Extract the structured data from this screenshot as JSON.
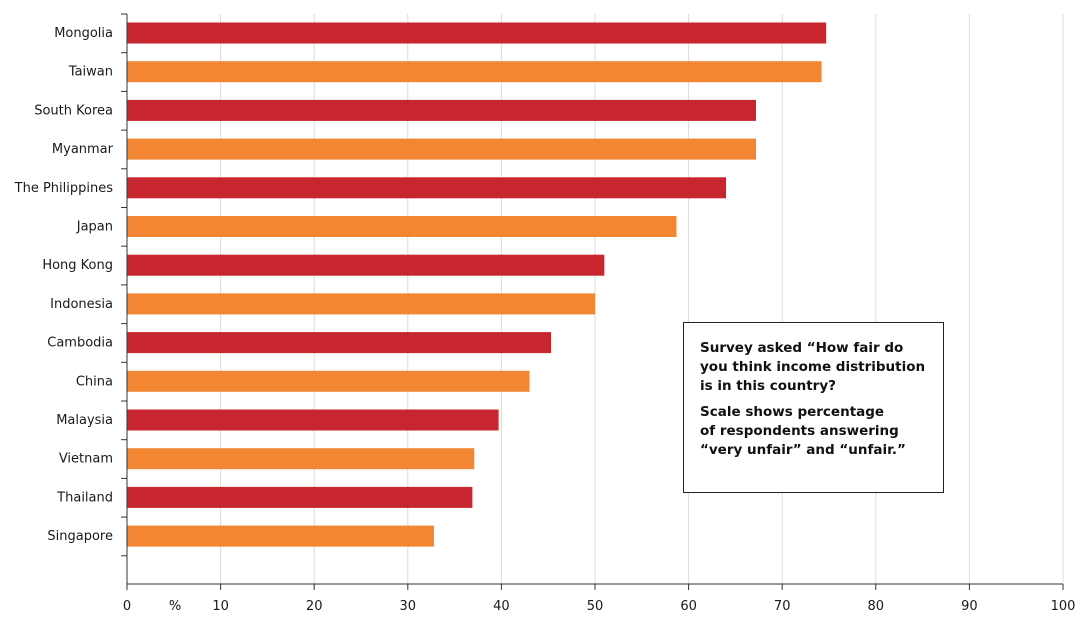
{
  "chart_data": {
    "type": "bar",
    "orientation": "horizontal",
    "categories": [
      "Mongolia",
      "Taiwan",
      "South Korea",
      "Myanmar",
      "The Philippines",
      "Japan",
      "Hong Kong",
      "Indonesia",
      "Cambodia",
      "China",
      "Malaysia",
      "Vietnam",
      "Thailand",
      "Singapore"
    ],
    "values": [
      74.7,
      74.2,
      67.2,
      67.2,
      64.0,
      58.7,
      51.0,
      50.0,
      45.3,
      43.0,
      39.7,
      37.1,
      36.9,
      32.8
    ],
    "xlim": [
      0,
      100
    ],
    "x_ticks": [
      "0",
      "10",
      "20",
      "30",
      "40",
      "50",
      "60",
      "70",
      "80",
      "90",
      "100"
    ],
    "x_unit_label": "%",
    "grid": "vertical",
    "colors": [
      "#c8262e",
      "#f28633"
    ],
    "annotation": {
      "line1": "Survey asked “How fair do\nyou think income distribution\nis in this country?",
      "line2": "Scale shows percentage\nof respondents answering\n“very unfair” and “unfair.”"
    }
  }
}
